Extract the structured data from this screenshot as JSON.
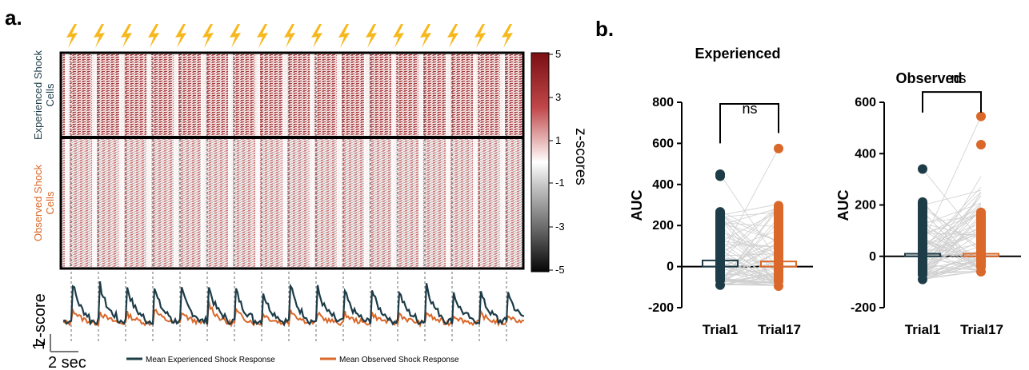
{
  "panels": {
    "a_letter": "a.",
    "b_letter": "b."
  },
  "colors": {
    "experienced": "#1d3c47",
    "observed": "#d9682a",
    "bolt": "#f6b81c",
    "positive": "#9a1b1e",
    "negative": "#111111"
  },
  "icons": {
    "shock": "lightning-bolt-icon"
  },
  "heatmap": {
    "row_labels": {
      "experienced": [
        "Experienced Shock",
        "Cells"
      ],
      "observed": [
        "Observed Shock",
        "Cells"
      ]
    },
    "colorbar": {
      "label": "z-scores",
      "ticks": [
        "5",
        "3",
        "1",
        "-1",
        "-3",
        "-5"
      ]
    }
  },
  "traces": {
    "ylabel": "z-score",
    "scale_y": "1",
    "scale_x": "2 sec",
    "legend": [
      "Mean Experienced Shock Response",
      "Mean Observed Shock Response"
    ]
  },
  "chart_data": [
    {
      "type": "heatmap",
      "trials": 17,
      "row_groups": [
        "Experienced Shock Cells",
        "Observed Shock Cells"
      ],
      "colorbar_label": "z-scores",
      "colorbar_range": [
        -5,
        5
      ]
    },
    {
      "type": "line",
      "ylabel": "z-score",
      "trials": 17,
      "series": [
        {
          "name": "Mean Experienced Shock Response",
          "peaks": [
            2.4,
            2.3,
            2.2,
            2.1,
            2.0,
            2.2,
            2.0,
            1.8,
            2.3,
            2.1,
            1.9,
            2.0,
            1.9,
            2.4,
            1.8,
            1.8,
            1.9
          ]
        },
        {
          "name": "Mean Observed Shock Response",
          "peaks": [
            0.9,
            0.7,
            0.6,
            0.9,
            0.7,
            1.3,
            0.8,
            0.6,
            0.9,
            0.6,
            0.6,
            0.6,
            0.6,
            0.7,
            0.5,
            0.6,
            0.5
          ]
        }
      ]
    },
    {
      "type": "scatter",
      "title": "Experienced",
      "ylabel": "AUC",
      "categories": [
        "Trial1",
        "Trial17"
      ],
      "ylim": [
        -200,
        800
      ],
      "yticks": [
        "800",
        "600",
        "400",
        "200",
        "0",
        "-200"
      ],
      "means": [
        30,
        25
      ],
      "maxima": [
        450,
        575
      ],
      "minima": [
        -90,
        -95
      ],
      "significance": "ns"
    },
    {
      "type": "scatter",
      "title": "Observed",
      "ylabel": "AUC",
      "categories": [
        "Trial1",
        "Trial17"
      ],
      "ylim": [
        -200,
        600
      ],
      "yticks": [
        "600",
        "400",
        "200",
        "0",
        "-200"
      ],
      "means": [
        10,
        10
      ],
      "maxima": [
        340,
        545
      ],
      "minima": [
        -90,
        -60
      ],
      "significance": "ns"
    }
  ]
}
